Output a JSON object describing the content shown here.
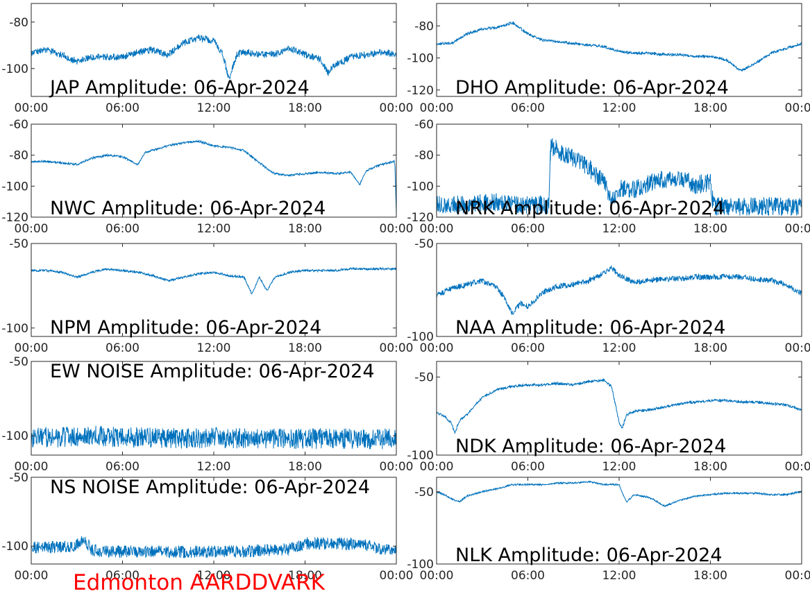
{
  "footer": "Edmonton AARDDVARK",
  "colors": {
    "trace": "#0072bd",
    "axis": "#262626",
    "label": "#000000",
    "footer": "#ff0000"
  },
  "x_ticks": [
    "00:00",
    "06:00",
    "12:00",
    "18:00",
    "00:00"
  ],
  "chart_data": [
    {
      "type": "line",
      "title": "JAP Amplitude: 06-Apr-2024",
      "y_ticks": [
        "-80",
        "-100"
      ],
      "y_tick_values": [
        -80,
        -100
      ],
      "ylim": [
        -112,
        -72
      ],
      "x_hours": [
        0,
        1,
        2,
        3,
        4,
        5,
        6,
        7,
        8,
        9,
        10,
        11,
        12,
        12.6,
        13,
        13.5,
        14,
        15,
        16,
        17,
        18,
        19,
        19.5,
        20,
        20.5,
        21,
        22,
        23,
        24
      ],
      "values": [
        -93,
        -92,
        -94,
        -97,
        -95,
        -95,
        -95,
        -93,
        -92,
        -94,
        -89,
        -87,
        -88,
        -94,
        -105,
        -94,
        -93,
        -94,
        -94,
        -91,
        -94,
        -96,
        -102,
        -98,
        -97,
        -95,
        -94,
        -93,
        -94
      ],
      "noise": 1.5,
      "noise_mode": "band"
    },
    {
      "type": "line",
      "title": "DHO Amplitude: 06-Apr-2024",
      "y_ticks": [
        "-80",
        "-100",
        "-120"
      ],
      "y_tick_values": [
        -80,
        -100,
        -120
      ],
      "ylim": [
        -124,
        -66
      ],
      "x_hours": [
        0,
        1,
        2,
        3,
        4,
        5,
        6,
        7,
        8,
        9,
        10,
        11,
        12,
        13,
        14,
        15,
        16,
        17,
        18,
        19,
        20,
        21,
        22,
        23,
        24
      ],
      "values": [
        -91,
        -91,
        -85,
        -82,
        -81,
        -78,
        -85,
        -89,
        -90,
        -91,
        -92,
        -93,
        -96,
        -97,
        -97,
        -98,
        -98,
        -99,
        -99,
        -101,
        -108,
        -103,
        -97,
        -94,
        -91
      ],
      "noise": 0.8,
      "noise_mode": "band"
    },
    {
      "type": "line",
      "title": "NWC Amplitude: 06-Apr-2024",
      "y_ticks": [
        "-60",
        "-80",
        "-100",
        "-120"
      ],
      "y_tick_values": [
        -60,
        -80,
        -100,
        -120
      ],
      "ylim": [
        -120,
        -60
      ],
      "x_hours": [
        0,
        1,
        2,
        3,
        4,
        5,
        6,
        7,
        7.5,
        8,
        9,
        10,
        11,
        12,
        13,
        14,
        15,
        16,
        17,
        18,
        19,
        20,
        21,
        21.6,
        22,
        23,
        23.9,
        24
      ],
      "values": [
        -84,
        -84,
        -85,
        -86,
        -82,
        -80,
        -81,
        -86,
        -78,
        -77,
        -74,
        -72,
        -71,
        -74,
        -75,
        -77,
        -85,
        -92,
        -93,
        -92,
        -91,
        -92,
        -91,
        -99,
        -90,
        -86,
        -84,
        -118
      ],
      "noise": 0.6,
      "noise_mode": "band"
    },
    {
      "type": "line",
      "title": "NRK Amplitude: 06-Apr-2024",
      "y_ticks": [
        "-60",
        "-80",
        "-100",
        "-120"
      ],
      "y_tick_values": [
        -60,
        -80,
        -100,
        -120
      ],
      "ylim": [
        -120,
        -60
      ],
      "x_hours": [
        0,
        1,
        2,
        3,
        4,
        5,
        6,
        7,
        7.4,
        7.5,
        8,
        9,
        10,
        11,
        11.5,
        12,
        13,
        14,
        15,
        16,
        17,
        17.5,
        18,
        18.2,
        19,
        20,
        21,
        22,
        23,
        24
      ],
      "values": [
        -112,
        -112,
        -112,
        -111,
        -110,
        -112,
        -112,
        -112,
        -112,
        -74,
        -77,
        -82,
        -88,
        -98,
        -110,
        -101,
        -102,
        -98,
        -96,
        -94,
        -100,
        -98,
        -98,
        -113,
        -113,
        -113,
        -113,
        -113,
        -113,
        -113
      ],
      "noise": 6,
      "noise_mode": "band"
    },
    {
      "type": "line",
      "title": "NPM Amplitude: 06-Apr-2024",
      "y_ticks": [
        "-50",
        "-100"
      ],
      "y_tick_values": [
        -50,
        -100
      ],
      "ylim": [
        -105,
        -50
      ],
      "x_hours": [
        0,
        1,
        2,
        3,
        4,
        5,
        6,
        7,
        8,
        9,
        10,
        11,
        12,
        13,
        14,
        14.5,
        15,
        15.5,
        16,
        17,
        18,
        19,
        20,
        21,
        22,
        23,
        24
      ],
      "values": [
        -66,
        -66,
        -67,
        -70,
        -67,
        -65,
        -66,
        -67,
        -69,
        -72,
        -70,
        -68,
        -67,
        -69,
        -70,
        -80,
        -70,
        -78,
        -70,
        -67,
        -66,
        -66,
        -66,
        -65,
        -65,
        -65,
        -65
      ],
      "noise": 0.6,
      "noise_mode": "band"
    },
    {
      "type": "line",
      "title": "NAA Amplitude: 06-Apr-2024",
      "y_ticks": [
        "-50",
        "-100"
      ],
      "y_tick_values": [
        -50,
        -100
      ],
      "ylim": [
        -100,
        -50
      ],
      "x_hours": [
        0,
        1,
        2,
        3,
        4,
        4.5,
        5,
        5.5,
        6,
        7,
        8,
        9,
        10,
        11,
        11.5,
        12,
        13,
        14,
        15,
        16,
        17,
        18,
        19,
        20,
        21,
        22,
        23,
        24
      ],
      "values": [
        -78,
        -74,
        -72,
        -70,
        -74,
        -80,
        -88,
        -82,
        -84,
        -76,
        -73,
        -72,
        -70,
        -66,
        -63,
        -67,
        -71,
        -70,
        -69,
        -69,
        -68,
        -68,
        -68,
        -68,
        -69,
        -70,
        -72,
        -77
      ],
      "noise": 1.5,
      "noise_mode": "band"
    },
    {
      "type": "line",
      "title": "EW NOISE Amplitude: 06-Apr-2024",
      "y_ticks": [
        "-50",
        "-100"
      ],
      "y_tick_values": [
        -50,
        -100
      ],
      "ylim": [
        -113,
        -50
      ],
      "x_hours": [
        0,
        2,
        4,
        6,
        8,
        10,
        12,
        14,
        16,
        18,
        20,
        22,
        24
      ],
      "values": [
        -101,
        -101,
        -100,
        -101,
        -101,
        -102,
        -101,
        -102,
        -102,
        -102,
        -102,
        -102,
        -102
      ],
      "noise": 7,
      "noise_mode": "band"
    },
    {
      "type": "line",
      "title": "NDK Amplitude: 06-Apr-2024",
      "y_ticks": [
        "-50",
        "-100"
      ],
      "y_tick_values": [
        -50,
        -100
      ],
      "ylim": [
        -100,
        -40
      ],
      "x_hours": [
        0,
        0.5,
        1,
        1.2,
        1.5,
        2,
        3,
        4,
        5,
        6,
        7,
        8,
        9,
        10,
        11,
        11.5,
        12,
        12.2,
        12.5,
        13,
        14,
        15,
        16,
        17,
        18,
        19,
        20,
        21,
        22,
        23,
        24
      ],
      "values": [
        -73,
        -75,
        -80,
        -86,
        -78,
        -74,
        -63,
        -58,
        -56,
        -55,
        -55,
        -54,
        -55,
        -53,
        -52,
        -56,
        -79,
        -83,
        -74,
        -72,
        -71,
        -69,
        -67,
        -66,
        -65,
        -65,
        -66,
        -66,
        -67,
        -68,
        -71
      ],
      "noise": 0.8,
      "noise_mode": "band"
    },
    {
      "type": "line",
      "title": "NS NOISE Amplitude: 06-Apr-2024",
      "y_ticks": [
        "-50",
        "-100"
      ],
      "y_tick_values": [
        -50,
        -100
      ],
      "ylim": [
        -113,
        -50
      ],
      "x_hours": [
        0,
        2,
        3,
        3.5,
        4,
        5,
        6,
        8,
        10,
        12,
        14,
        15,
        16,
        17,
        18,
        20,
        22,
        23,
        24
      ],
      "values": [
        -101,
        -101,
        -99,
        -95,
        -103,
        -104,
        -104,
        -104,
        -104,
        -104,
        -104,
        -103,
        -103,
        -102,
        -98,
        -98,
        -99,
        -102,
        -104
      ],
      "noise": 4.5,
      "noise_mode": "band"
    },
    {
      "type": "line",
      "title": "NLK Amplitude: 06-Apr-2024",
      "y_ticks": [
        "-50",
        "-100"
      ],
      "y_tick_values": [
        -50,
        -100
      ],
      "ylim": [
        -100,
        -40
      ],
      "x_hours": [
        0,
        0.5,
        1,
        1.5,
        2,
        3,
        4,
        5,
        6,
        7,
        8,
        9,
        10,
        11,
        12,
        12.3,
        12.5,
        13,
        14,
        15,
        16,
        17,
        18,
        19,
        20,
        21,
        22,
        23,
        24
      ],
      "values": [
        -50,
        -52,
        -55,
        -57,
        -53,
        -50,
        -48,
        -45,
        -45,
        -45,
        -44,
        -44,
        -43,
        -45,
        -45,
        -53,
        -57,
        -52,
        -54,
        -60,
        -56,
        -53,
        -52,
        -51,
        -51,
        -51,
        -52,
        -52,
        -50
      ],
      "noise": 0.5,
      "noise_mode": "band"
    }
  ]
}
